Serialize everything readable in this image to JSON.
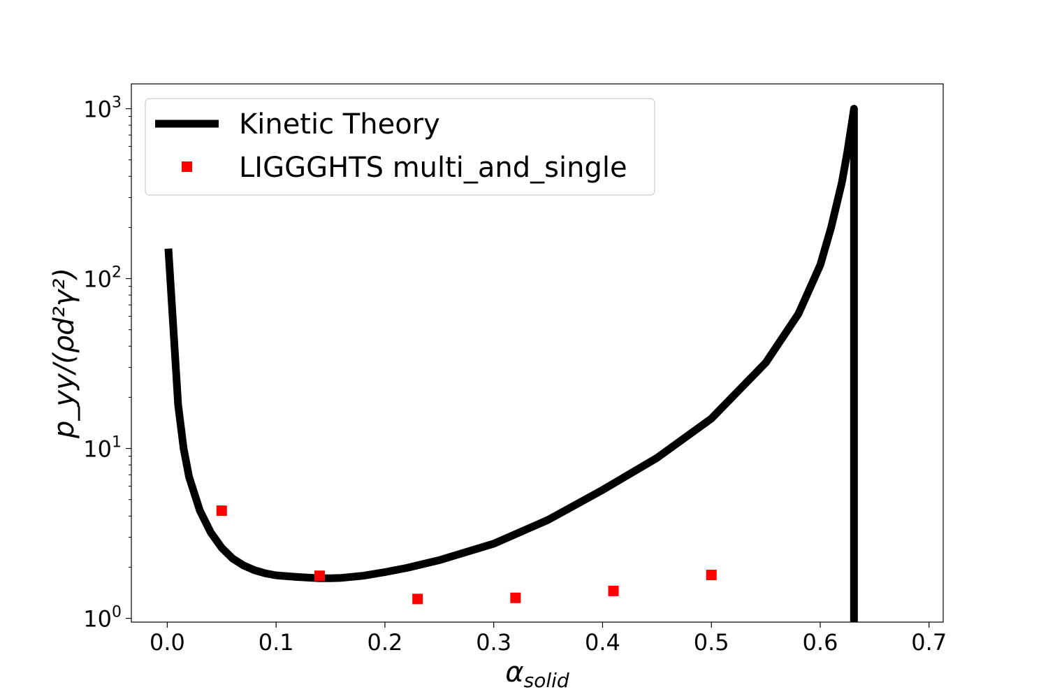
{
  "chart_data": {
    "type": "line",
    "title": "",
    "xlabel": {
      "base": "α",
      "sub": "solid"
    },
    "ylabel": {
      "text": "p_yy/(ρd²γ²)"
    },
    "xlim": [
      -0.033,
      0.713
    ],
    "ylim": [
      0.95,
      1400
    ],
    "yscale": "log",
    "grid": false,
    "legend_position": "top-left",
    "x_ticks": [
      0.0,
      0.1,
      0.2,
      0.3,
      0.4,
      0.5,
      0.6,
      0.7
    ],
    "x_tick_labels": [
      "0.0",
      "0.1",
      "0.2",
      "0.3",
      "0.4",
      "0.5",
      "0.6",
      "0.7"
    ],
    "y_ticks": [
      1,
      10,
      100,
      1000
    ],
    "y_tick_labels": [
      {
        "base": "10",
        "exp": "0"
      },
      {
        "base": "10",
        "exp": "1"
      },
      {
        "base": "10",
        "exp": "2"
      },
      {
        "base": "10",
        "exp": "3"
      }
    ],
    "series": [
      {
        "name": "Kinetic Theory",
        "kind": "line",
        "color": "#000000",
        "x": [
          0.001,
          0.01,
          0.015,
          0.02,
          0.03,
          0.04,
          0.05,
          0.06,
          0.07,
          0.08,
          0.09,
          0.1,
          0.12,
          0.14,
          0.15,
          0.16,
          0.18,
          0.2,
          0.22,
          0.25,
          0.3,
          0.35,
          0.4,
          0.45,
          0.5,
          0.55,
          0.58,
          0.6,
          0.61,
          0.62,
          0.625,
          0.63,
          0.631,
          0.631
        ],
        "y": [
          150,
          18,
          10,
          6.8,
          4.3,
          3.2,
          2.6,
          2.25,
          2.05,
          1.92,
          1.84,
          1.79,
          1.75,
          1.72,
          1.72,
          1.73,
          1.78,
          1.87,
          1.98,
          2.2,
          2.75,
          3.8,
          5.7,
          8.8,
          15,
          32,
          62,
          120,
          200,
          370,
          560,
          900,
          1000,
          0.95
        ]
      },
      {
        "name": "LIGGGHTS multi_and_single",
        "kind": "scatter",
        "color": "#ff0000",
        "marker": "square",
        "x": [
          0.05,
          0.14,
          0.23,
          0.32,
          0.41,
          0.5
        ],
        "y": [
          4.3,
          1.78,
          1.3,
          1.32,
          1.45,
          1.8
        ]
      }
    ]
  }
}
